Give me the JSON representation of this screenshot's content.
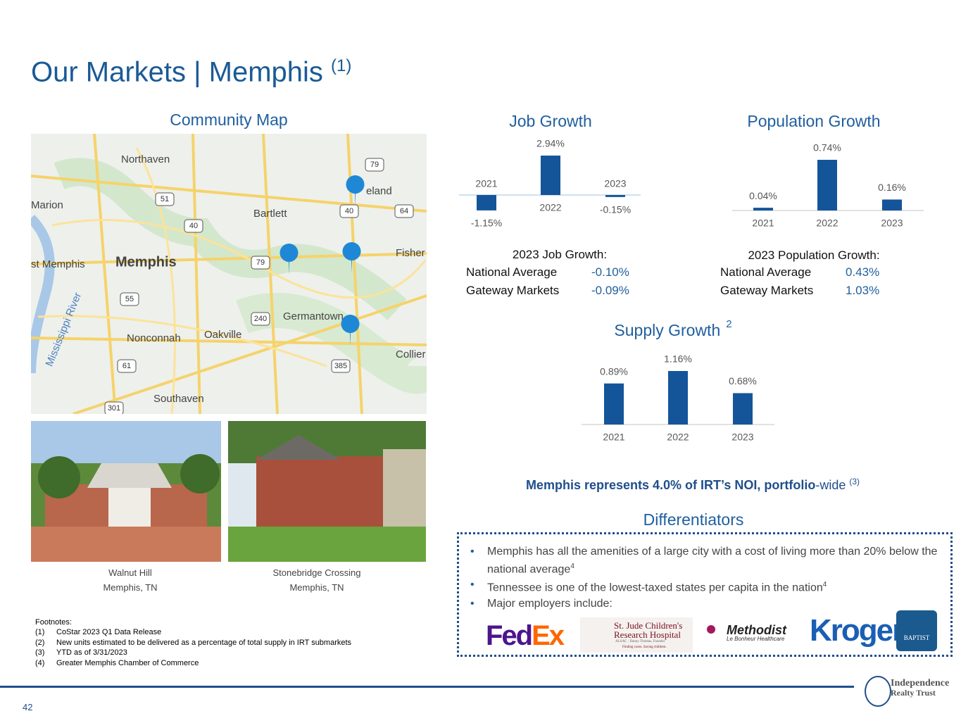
{
  "title": "Our Markets | Memphis",
  "title_note": "(1)",
  "map": {
    "title": "Community Map",
    "places": [
      "Northaven",
      "Bartlett",
      "Memphis",
      "st Memphis",
      "Marion",
      "Germantown",
      "Nonconnah",
      "Oakville",
      "Southaven",
      "Collier",
      "Fisher",
      "eland",
      "Mississippi River"
    ],
    "shields": [
      "79",
      "51",
      "40",
      "40",
      "55",
      "240",
      "61",
      "385",
      "301",
      "64",
      "79"
    ]
  },
  "photos": [
    {
      "name": "Walnut Hill",
      "location": "Memphis, TN"
    },
    {
      "name": "Stonebridge Crossing",
      "location": "Memphis, TN"
    }
  ],
  "chart_data": [
    {
      "type": "bar",
      "title": "Job Growth",
      "categories": [
        "2021",
        "2022",
        "2023"
      ],
      "values": [
        -1.15,
        2.94,
        -0.15
      ],
      "value_labels": [
        "-1.15%",
        "2.94%",
        "-0.15%"
      ],
      "color": "#14559a"
    },
    {
      "type": "bar",
      "title": "Population Growth",
      "categories": [
        "2021",
        "2022",
        "2023"
      ],
      "values": [
        0.04,
        0.74,
        0.16
      ],
      "value_labels": [
        "0.04%",
        "0.74%",
        "0.16%"
      ],
      "color": "#14559a"
    },
    {
      "type": "bar",
      "title": "Supply Growth",
      "title_note": "2",
      "categories": [
        "2021",
        "2022",
        "2023"
      ],
      "values": [
        0.89,
        1.16,
        0.68
      ],
      "value_labels": [
        "0.89%",
        "1.16%",
        "0.68%"
      ],
      "color": "#14559a"
    }
  ],
  "job_stats": {
    "title": "2023 Job Growth:",
    "rows": [
      [
        "National Average",
        "-0.10%"
      ],
      [
        "Gateway Markets",
        "-0.09%"
      ]
    ]
  },
  "population_stats": {
    "title": "2023 Population Growth:",
    "rows": [
      [
        "National Average",
        "0.43%"
      ],
      [
        "Gateway Markets",
        "1.03%"
      ]
    ]
  },
  "highlight": {
    "bold": "Memphis represents 4.0% of IRT’s NOI, portfolio",
    "normal": "-wide",
    "note": "(3)"
  },
  "differentiators": {
    "title": "Differentiators",
    "bullets": [
      {
        "text": "Memphis has all the amenities of a large city with a cost of living more than 20% below the national average",
        "note": "4"
      },
      {
        "text": "Tennessee is one of the lowest-taxed states per capita in the nation",
        "note": "4"
      },
      {
        "text": "Major employers include:"
      }
    ],
    "logos": {
      "fedex_fed": "Fed",
      "fedex_ex": "Ex",
      "stjude_1": "St. Jude Children's",
      "stjude_2": "Research Hospital",
      "stjude_3": "ALSAC · Danny Thomas, Founder",
      "stjude_4": "Finding cures. Saving children.",
      "methodist_1": "Methodist",
      "methodist_2": "Le Bonheur Healthcare",
      "kroger": "Kroger",
      "baptist": "BAPTIST"
    }
  },
  "footnotes": {
    "title": "Footnotes:",
    "items": [
      [
        "(1)",
        "CoStar 2023 Q1 Data Release"
      ],
      [
        "(2)",
        "New units estimated to be delivered as a percentage of total supply in IRT submarkets"
      ],
      [
        "(3)",
        "YTD as of 3/31/2023"
      ],
      [
        "(4)",
        "Greater Memphis Chamber of Commerce"
      ]
    ]
  },
  "footer": {
    "page": "42",
    "logo_1": "Independence",
    "logo_2": "Realty Trust"
  }
}
